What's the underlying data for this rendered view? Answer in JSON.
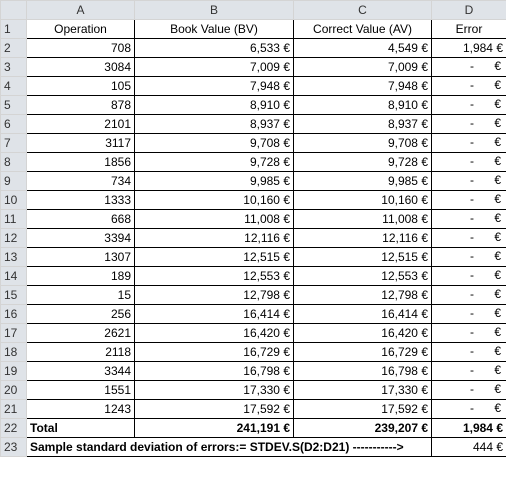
{
  "columns": [
    "A",
    "B",
    "C",
    "D"
  ],
  "headers": {
    "row_number": "1",
    "a": "Operation",
    "b": "Book Value (BV)",
    "c": "Correct Value (AV)",
    "d": "Error"
  },
  "rows": [
    {
      "n": "2",
      "a": "708",
      "b": "6,533 €",
      "c": "4,549 €",
      "d": "1,984 €"
    },
    {
      "n": "3",
      "a": "3084",
      "b": "7,009 €",
      "c": "7,009 €",
      "d_dash": "-",
      "d_euro": "€"
    },
    {
      "n": "4",
      "a": "105",
      "b": "7,948 €",
      "c": "7,948 €",
      "d_dash": "-",
      "d_euro": "€"
    },
    {
      "n": "5",
      "a": "878",
      "b": "8,910 €",
      "c": "8,910 €",
      "d_dash": "-",
      "d_euro": "€"
    },
    {
      "n": "6",
      "a": "2101",
      "b": "8,937 €",
      "c": "8,937 €",
      "d_dash": "-",
      "d_euro": "€"
    },
    {
      "n": "7",
      "a": "3117",
      "b": "9,708 €",
      "c": "9,708 €",
      "d_dash": "-",
      "d_euro": "€"
    },
    {
      "n": "8",
      "a": "1856",
      "b": "9,728 €",
      "c": "9,728 €",
      "d_dash": "-",
      "d_euro": "€"
    },
    {
      "n": "9",
      "a": "734",
      "b": "9,985 €",
      "c": "9,985 €",
      "d_dash": "-",
      "d_euro": "€"
    },
    {
      "n": "10",
      "a": "1333",
      "b": "10,160 €",
      "c": "10,160 €",
      "d_dash": "-",
      "d_euro": "€"
    },
    {
      "n": "11",
      "a": "668",
      "b": "11,008 €",
      "c": "11,008 €",
      "d_dash": "-",
      "d_euro": "€"
    },
    {
      "n": "12",
      "a": "3394",
      "b": "12,116 €",
      "c": "12,116 €",
      "d_dash": "-",
      "d_euro": "€"
    },
    {
      "n": "13",
      "a": "1307",
      "b": "12,515 €",
      "c": "12,515 €",
      "d_dash": "-",
      "d_euro": "€"
    },
    {
      "n": "14",
      "a": "189",
      "b": "12,553 €",
      "c": "12,553 €",
      "d_dash": "-",
      "d_euro": "€"
    },
    {
      "n": "15",
      "a": "15",
      "b": "12,798 €",
      "c": "12,798 €",
      "d_dash": "-",
      "d_euro": "€"
    },
    {
      "n": "16",
      "a": "256",
      "b": "16,414 €",
      "c": "16,414 €",
      "d_dash": "-",
      "d_euro": "€"
    },
    {
      "n": "17",
      "a": "2621",
      "b": "16,420 €",
      "c": "16,420 €",
      "d_dash": "-",
      "d_euro": "€"
    },
    {
      "n": "18",
      "a": "2118",
      "b": "16,729 €",
      "c": "16,729 €",
      "d_dash": "-",
      "d_euro": "€"
    },
    {
      "n": "19",
      "a": "3344",
      "b": "16,798 €",
      "c": "16,798 €",
      "d_dash": "-",
      "d_euro": "€"
    },
    {
      "n": "20",
      "a": "1551",
      "b": "17,330 €",
      "c": "17,330 €",
      "d_dash": "-",
      "d_euro": "€"
    },
    {
      "n": "21",
      "a": "1243",
      "b": "17,592 €",
      "c": "17,592 €",
      "d_dash": "-",
      "d_euro": "€"
    }
  ],
  "total_row": {
    "n": "22",
    "label": "Total",
    "b": "241,191 €",
    "c": "239,207 €",
    "d": "1,984 €"
  },
  "stdev_row": {
    "n": "23",
    "label": "Sample standard deviation of errors:= STDEV.S(D2:D21) ----------->",
    "d": "444 €"
  }
}
